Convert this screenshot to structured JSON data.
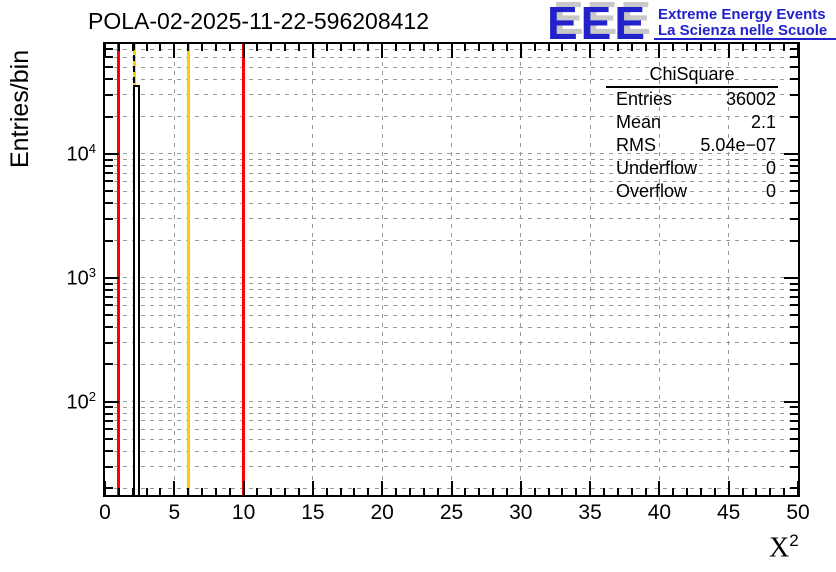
{
  "header": {
    "title": "POLA-02-2025-11-22-596208412",
    "logo": {
      "acronym": "EEE",
      "line1": "Extreme Energy Events",
      "line2": "La Scienza nelle Scuole",
      "color": "#2222cc"
    }
  },
  "stats_box": {
    "title": "ChiSquare",
    "rows": [
      {
        "label": "Entries",
        "value": "36002"
      },
      {
        "label": "Mean",
        "value": "2.1"
      },
      {
        "label": "RMS",
        "value": "5.04e−07"
      },
      {
        "label": "Underflow",
        "value": "0"
      },
      {
        "label": "Overflow",
        "value": "0"
      }
    ]
  },
  "chart_data": {
    "type": "bar",
    "title": "POLA-02-2025-11-22-596208412",
    "xlabel": "X^2",
    "xlabel_base": "X",
    "xlabel_sup": "2",
    "ylabel": "Entries/bin",
    "yscale": "log",
    "xlim": [
      0,
      50
    ],
    "ylim": [
      17.7,
      77000
    ],
    "grid": true,
    "x_major_ticks": [
      {
        "value": 0,
        "label": "0"
      },
      {
        "value": 5,
        "label": "5"
      },
      {
        "value": 10,
        "label": "10"
      },
      {
        "value": 15,
        "label": "15"
      },
      {
        "value": 20,
        "label": "20"
      },
      {
        "value": 25,
        "label": "25"
      },
      {
        "value": 30,
        "label": "30"
      },
      {
        "value": 35,
        "label": "35"
      },
      {
        "value": 40,
        "label": "40"
      },
      {
        "value": 45,
        "label": "45"
      },
      {
        "value": 50,
        "label": "50"
      }
    ],
    "y_decades": [
      {
        "value": 100,
        "label_base": "10",
        "label_exp": "2"
      },
      {
        "value": 1000,
        "label_base": "10",
        "label_exp": "3"
      },
      {
        "value": 10000,
        "label_base": "10",
        "label_exp": "4"
      }
    ],
    "bins": [
      {
        "x0": 2.0,
        "x1": 2.5,
        "count": 36002
      }
    ],
    "marker_lines": [
      {
        "x": 1,
        "color": "#ff0000",
        "style": "solid",
        "layer": "front"
      },
      {
        "x": 2.1,
        "color": "#ffcc00",
        "style": "solid",
        "layer": "behind-hist"
      },
      {
        "x": 2.1,
        "color": "#000000",
        "style": "dashed",
        "layer": "front"
      },
      {
        "x": 6,
        "color": "#ffcc00",
        "style": "solid",
        "layer": "front"
      },
      {
        "x": 10,
        "color": "#ff0000",
        "style": "solid",
        "layer": "front"
      }
    ],
    "colors": {
      "cut_line": "#ff0000",
      "warn_line": "#ffcc00",
      "grid": "#999999",
      "histogram": "#000000"
    }
  }
}
